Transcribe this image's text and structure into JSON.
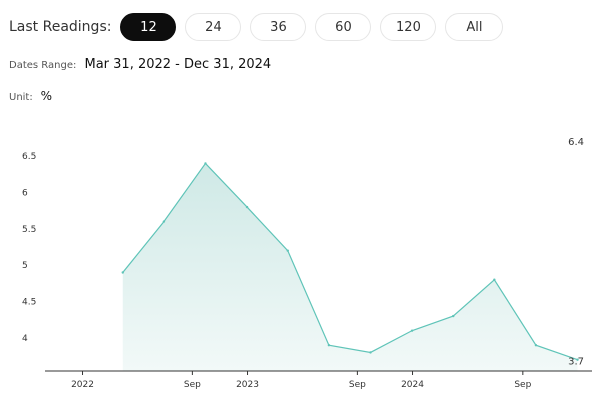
{
  "header": {
    "last_readings_label": "Last Readings:",
    "ranges": [
      "12",
      "24",
      "36",
      "60",
      "120",
      "All"
    ],
    "active_range": "12"
  },
  "dates_range": {
    "label": "Dates Range:",
    "value": "Mar 31, 2022 - Dec 31, 2024"
  },
  "unit": {
    "label": "Unit:",
    "value": "%"
  },
  "colors": {
    "line": "#5fc4b8",
    "fill_top": "#cfe9e6",
    "fill_bottom": "#f2f9f8",
    "active_button": "#0d0d0d"
  },
  "chart_data": {
    "type": "area",
    "x": [
      "2022-03-31",
      "2022-06-30",
      "2022-09-30",
      "2022-12-31",
      "2023-03-31",
      "2023-06-30",
      "2023-09-30",
      "2023-12-31",
      "2024-03-31",
      "2024-06-30",
      "2024-09-30",
      "2024-12-31"
    ],
    "values": [
      4.9,
      5.6,
      6.4,
      5.8,
      5.2,
      3.9,
      3.8,
      4.1,
      4.3,
      4.8,
      3.9,
      3.7
    ],
    "ylim": [
      3.6,
      6.75
    ],
    "yticks": [
      4,
      4.5,
      5,
      5.5,
      6,
      6.5
    ],
    "ytick_labels": [
      "4",
      "4.5",
      "5",
      "5.5",
      "6",
      "6.5"
    ],
    "xticks": [
      "2022-01-01",
      "2022-09-01",
      "2023-01-01",
      "2023-09-01",
      "2024-01-01",
      "2024-09-01"
    ],
    "xtick_labels": [
      "2022",
      "Sep",
      "2023",
      "Sep",
      "2024",
      "Sep"
    ],
    "max_label": "6.4",
    "last_label": "3.7",
    "grid": false,
    "legend": "none"
  }
}
